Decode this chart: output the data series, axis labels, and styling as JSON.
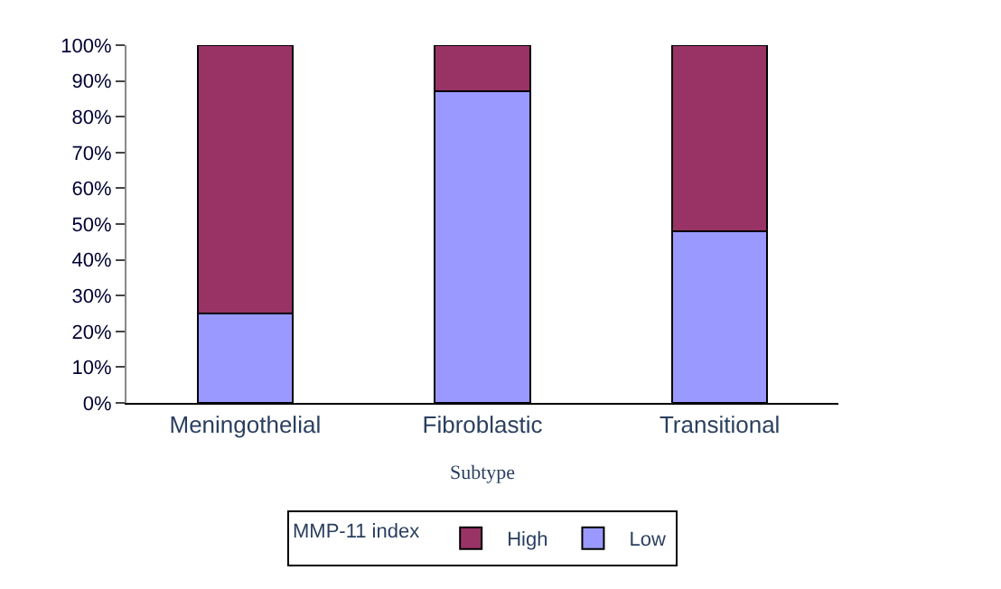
{
  "chart_data": {
    "type": "bar",
    "stacked": true,
    "xlabel": "Subtype",
    "legend_title": "MMP-11 index",
    "categories": [
      "Meningothelial",
      "Fibroblastic",
      "Transitional"
    ],
    "series": [
      {
        "name": "Low",
        "color": "#9999ff",
        "values": [
          25,
          87,
          48
        ]
      },
      {
        "name": "High",
        "color": "#993366",
        "values": [
          75,
          13,
          52
        ]
      }
    ],
    "ylim": [
      0,
      100
    ],
    "yticks": [
      {
        "value": 0,
        "label": "0%"
      },
      {
        "value": 10,
        "label": "10%"
      },
      {
        "value": 20,
        "label": "20%"
      },
      {
        "value": 30,
        "label": "30%"
      },
      {
        "value": 40,
        "label": "40%"
      },
      {
        "value": 50,
        "label": "50%"
      },
      {
        "value": 60,
        "label": "60%"
      },
      {
        "value": 70,
        "label": "70%"
      },
      {
        "value": 80,
        "label": "80%"
      },
      {
        "value": 90,
        "label": "90%"
      },
      {
        "value": 100,
        "label": "100%"
      }
    ],
    "grid": false,
    "legend": "bottom"
  }
}
